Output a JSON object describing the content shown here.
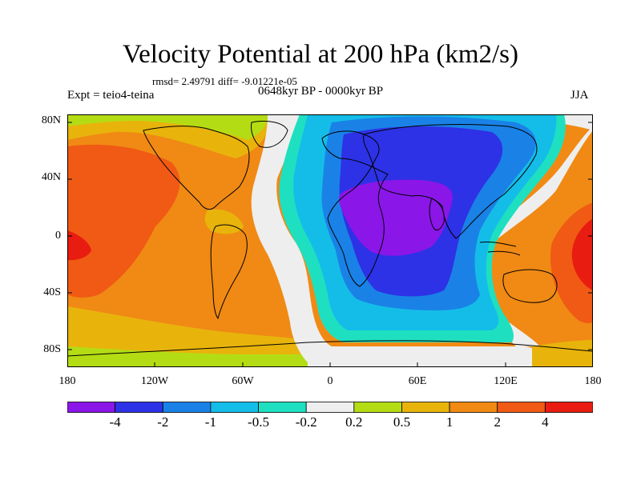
{
  "title": "Velocity Potential at 200 hPa (km2/s)",
  "stats": "rmsd= 2.49791 diff= -9.01221e-05",
  "experiment": "Expt = teio4-teina",
  "period": "0648kyr BP - 0000kyr BP",
  "season": "JJA",
  "map": {
    "lat_labels": [
      "80N",
      "40N",
      "0",
      "40S",
      "80S"
    ],
    "lon_labels": [
      "180",
      "120W",
      "60W",
      "0",
      "60E",
      "120E",
      "180"
    ]
  },
  "colorbar": {
    "labels": [
      "-4",
      "-2",
      "-1",
      "-0.5",
      "-0.2",
      "0.2",
      "0.5",
      "1",
      "2",
      "4"
    ],
    "colors": [
      "#8a16e8",
      "#2d32e6",
      "#1a82e6",
      "#14bde8",
      "#1ee0c0",
      "#eeeeee",
      "#b4dc14",
      "#e8b40c",
      "#f08a14",
      "#f05a14",
      "#e81c10"
    ]
  }
}
